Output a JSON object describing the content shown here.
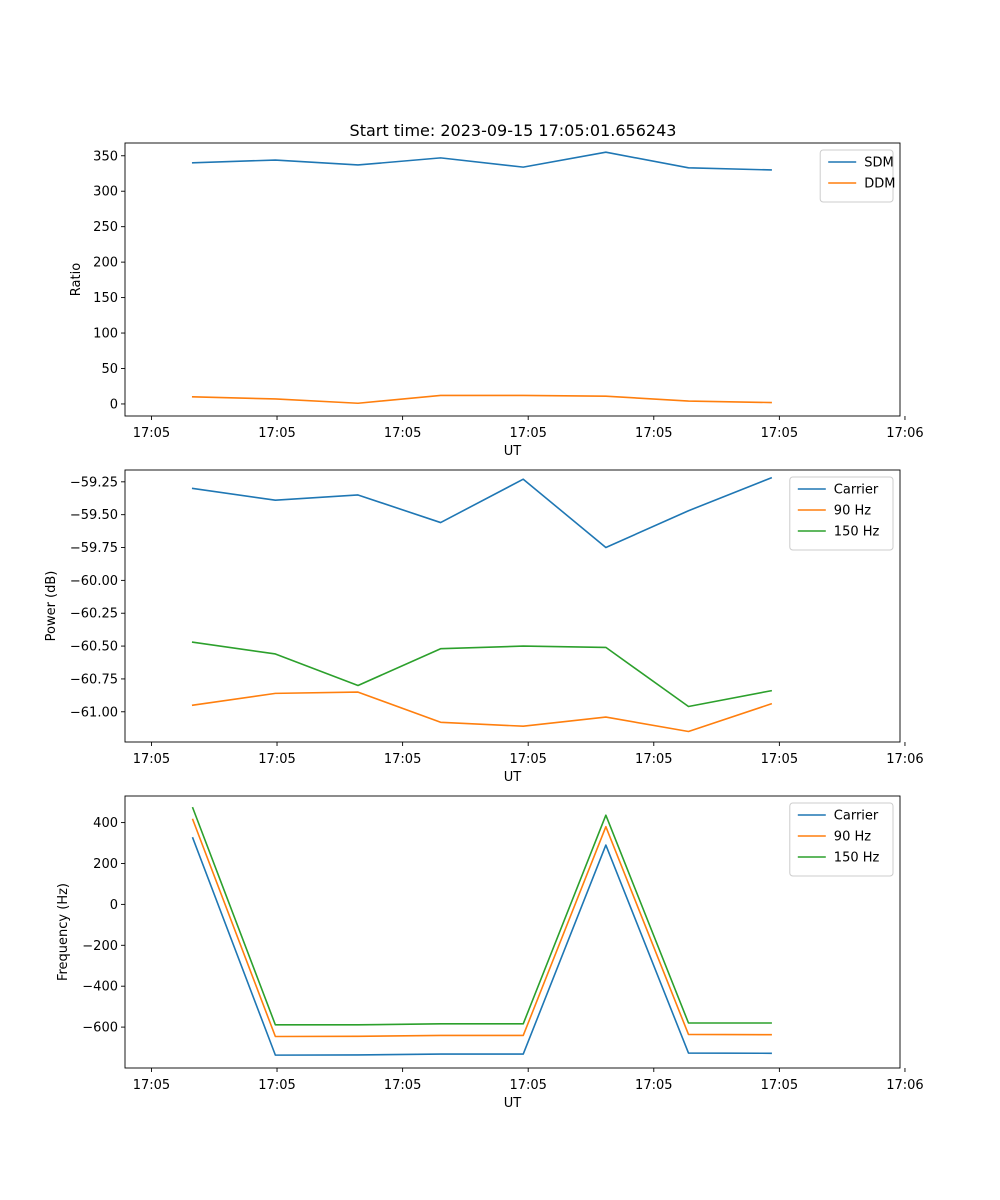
{
  "figure_title": "Start time: 2023-09-15 17:05:01.656243",
  "colors": {
    "blue": "#1f77b4",
    "orange": "#ff7f0e",
    "green": "#2ca02c",
    "axis": "#000000",
    "legend_border": "#cccccc"
  },
  "chart_data": [
    {
      "id": "ratio",
      "type": "line",
      "title": "Start time: 2023-09-15 17:05:01.656243",
      "xlabel": "UT",
      "ylabel": "Ratio",
      "x": [
        2.5,
        7.5,
        12.5,
        17.5,
        22.5,
        27.5,
        32.5,
        37.5
      ],
      "xlim": [
        -1.6,
        45.3
      ],
      "xticks": [
        0,
        7.6,
        15.2,
        22.8,
        30.4,
        38.0,
        45.6
      ],
      "xtick_labels": [
        "17:05",
        "17:05",
        "17:05",
        "17:05",
        "17:05",
        "17:05",
        "17:06"
      ],
      "ylim": [
        -17,
        368
      ],
      "yticks": [
        0,
        50,
        100,
        150,
        200,
        250,
        300,
        350
      ],
      "ytick_labels": [
        "0",
        "50",
        "100",
        "150",
        "200",
        "250",
        "300",
        "350"
      ],
      "legend_location": "top-right",
      "series": [
        {
          "name": "SDM",
          "color": "#1f77b4",
          "values": [
            340,
            344,
            337,
            347,
            334,
            355,
            333,
            330
          ]
        },
        {
          "name": "DDM",
          "color": "#ff7f0e",
          "values": [
            10,
            7,
            1,
            12,
            12,
            11,
            4,
            2
          ]
        }
      ]
    },
    {
      "id": "power",
      "type": "line",
      "xlabel": "UT",
      "ylabel": "Power (dB)",
      "x": [
        2.5,
        7.5,
        12.5,
        17.5,
        22.5,
        27.5,
        32.5,
        37.5
      ],
      "xlim": [
        -1.6,
        45.3
      ],
      "xticks": [
        0,
        7.6,
        15.2,
        22.8,
        30.4,
        38.0,
        45.6
      ],
      "xtick_labels": [
        "17:05",
        "17:05",
        "17:05",
        "17:05",
        "17:05",
        "17:05",
        "17:06"
      ],
      "ylim": [
        -61.23,
        -59.16
      ],
      "yticks": [
        -59.25,
        -59.5,
        -59.75,
        -60.0,
        -60.25,
        -60.5,
        -60.75,
        -61.0
      ],
      "ytick_labels": [
        "−59.25",
        "−59.50",
        "−59.75",
        "−60.00",
        "−60.25",
        "−60.50",
        "−60.75",
        "−61.00"
      ],
      "legend_location": "top-right",
      "series": [
        {
          "name": "Carrier",
          "color": "#1f77b4",
          "values": [
            -59.3,
            -59.39,
            -59.35,
            -59.56,
            -59.23,
            -59.75,
            -59.47,
            -59.22
          ]
        },
        {
          "name": "90 Hz",
          "color": "#ff7f0e",
          "values": [
            -60.95,
            -60.86,
            -60.85,
            -61.08,
            -61.11,
            -61.04,
            -61.15,
            -60.94
          ]
        },
        {
          "name": "150 Hz",
          "color": "#2ca02c",
          "values": [
            -60.47,
            -60.56,
            -60.8,
            -60.52,
            -60.5,
            -60.51,
            -60.96,
            -60.84
          ]
        }
      ]
    },
    {
      "id": "frequency",
      "type": "line",
      "xlabel": "UT",
      "ylabel": "Frequency (Hz)",
      "x": [
        2.5,
        7.5,
        12.5,
        17.5,
        22.5,
        27.5,
        32.5,
        37.5
      ],
      "xlim": [
        -1.6,
        45.3
      ],
      "xticks": [
        0,
        7.6,
        15.2,
        22.8,
        30.4,
        38.0,
        45.6
      ],
      "xtick_labels": [
        "17:05",
        "17:05",
        "17:05",
        "17:05",
        "17:05",
        "17:05",
        "17:06"
      ],
      "ylim": [
        -800,
        530
      ],
      "yticks": [
        -600,
        -400,
        -200,
        0,
        200,
        400
      ],
      "ytick_labels": [
        "−600",
        "−400",
        "−200",
        "0",
        "200",
        "400"
      ],
      "legend_location": "top-right",
      "series": [
        {
          "name": "Carrier",
          "color": "#1f77b4",
          "values": [
            325,
            -737,
            -736,
            -732,
            -732,
            290,
            -727,
            -728
          ]
        },
        {
          "name": "90 Hz",
          "color": "#ff7f0e",
          "values": [
            415,
            -646,
            -645,
            -641,
            -641,
            380,
            -636,
            -637
          ]
        },
        {
          "name": "150 Hz",
          "color": "#2ca02c",
          "values": [
            472,
            -589,
            -589,
            -584,
            -584,
            436,
            -580,
            -580
          ]
        }
      ]
    }
  ]
}
